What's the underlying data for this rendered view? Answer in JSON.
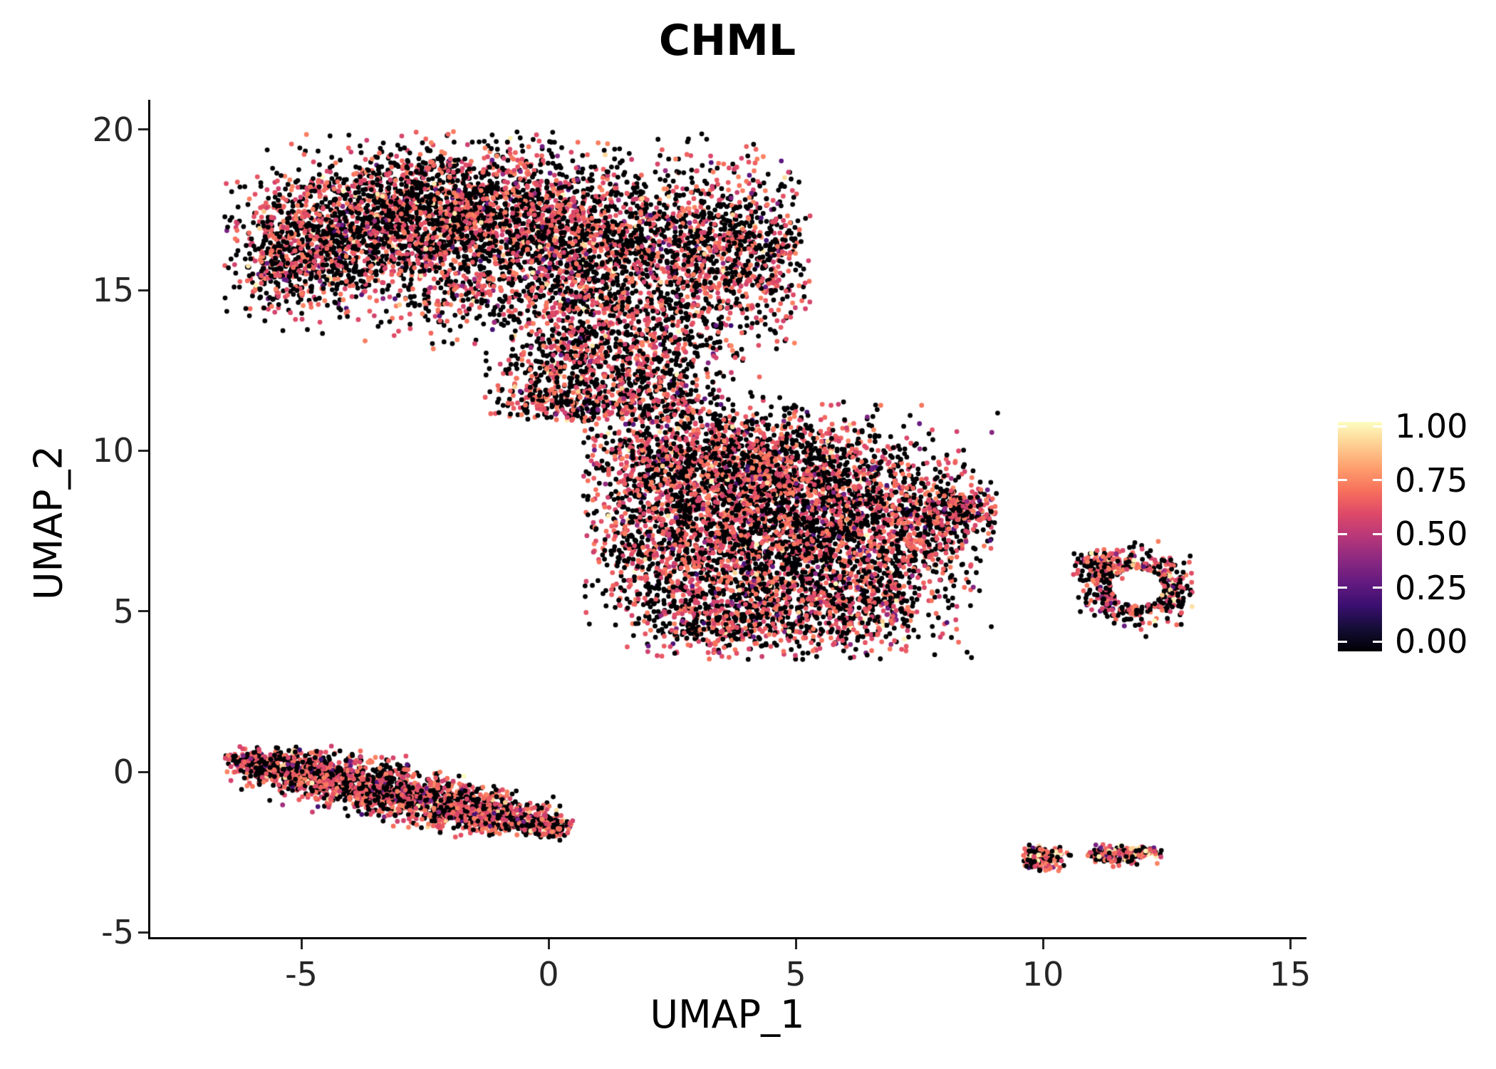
{
  "title": "CHML",
  "chart_data": {
    "type": "scatter",
    "title": "CHML",
    "xlabel": "UMAP_1",
    "ylabel": "UMAP_2",
    "xlim": [
      -8.1,
      15.3
    ],
    "ylim": [
      -5.6,
      20.9
    ],
    "x_ticks": [
      -5,
      0,
      5,
      10,
      15
    ],
    "y_ticks": [
      -5,
      0,
      5,
      10,
      15,
      20
    ],
    "grid": "off",
    "legend_position": "right",
    "colormap": "magma",
    "color_stops": [
      {
        "t": 0.0,
        "c": "#000004"
      },
      {
        "t": 0.1,
        "c": "#140e36"
      },
      {
        "t": 0.2,
        "c": "#3b0f70"
      },
      {
        "t": 0.3,
        "c": "#641a80"
      },
      {
        "t": 0.4,
        "c": "#8c2981"
      },
      {
        "t": 0.5,
        "c": "#b73779"
      },
      {
        "t": 0.6,
        "c": "#de4968"
      },
      {
        "t": 0.7,
        "c": "#f7705c"
      },
      {
        "t": 0.8,
        "c": "#fe9f6d"
      },
      {
        "t": 0.9,
        "c": "#fecf92"
      },
      {
        "t": 1.0,
        "c": "#fcfdbf"
      }
    ],
    "colorbar": {
      "labels": [
        "1.00",
        "0.75",
        "0.50",
        "0.25",
        "0.00"
      ],
      "values": [
        1.0,
        0.75,
        0.5,
        0.25,
        0.0
      ]
    },
    "point_radius_px": 3.4,
    "clusters": [
      {
        "name": "upper-cluster",
        "type": "blobs",
        "blobs": [
          [
            -5.3,
            15.6,
            0.55,
            0.7,
            220
          ],
          [
            -4.8,
            16.6,
            0.8,
            0.9,
            450
          ],
          [
            -3.6,
            17.0,
            1.15,
            1.15,
            850
          ],
          [
            -2.2,
            17.6,
            1.15,
            1.0,
            850
          ],
          [
            -0.8,
            17.2,
            1.1,
            1.15,
            780
          ],
          [
            0.6,
            16.6,
            1.0,
            1.2,
            680
          ],
          [
            2.0,
            16.2,
            1.0,
            1.3,
            600
          ],
          [
            3.3,
            16.4,
            0.9,
            1.35,
            580
          ],
          [
            4.2,
            15.9,
            0.6,
            1.2,
            300
          ],
          [
            -1.5,
            15.1,
            1.5,
            0.8,
            420
          ],
          [
            0.8,
            14.3,
            0.8,
            0.7,
            200
          ]
        ],
        "clip": [
          -6.6,
          5.3,
          12.6,
          19.95
        ],
        "expr": {
          "zero": 0.55,
          "low": 0.03,
          "mid": 0.4,
          "high": 0.02
        }
      },
      {
        "name": "isthmus-cluster",
        "type": "blobs",
        "blobs": [
          [
            0.2,
            12.4,
            0.7,
            0.8,
            240
          ],
          [
            1.2,
            12.7,
            0.8,
            0.9,
            300
          ],
          [
            2.2,
            12.0,
            0.8,
            0.8,
            220
          ],
          [
            0.0,
            11.5,
            0.6,
            0.3,
            120
          ],
          [
            1.5,
            11.35,
            0.8,
            0.35,
            130
          ],
          [
            2.8,
            13.5,
            0.75,
            0.8,
            130
          ]
        ],
        "clip": [
          -1.3,
          4.3,
          10.9,
          14.7
        ],
        "expr": {
          "zero": 0.55,
          "low": 0.03,
          "mid": 0.4,
          "high": 0.02
        }
      },
      {
        "name": "central-cluster",
        "type": "blobs",
        "blobs": [
          [
            2.6,
            9.8,
            1.0,
            0.9,
            600
          ],
          [
            4.2,
            9.6,
            1.3,
            1.0,
            800
          ],
          [
            6.0,
            8.8,
            1.2,
            1.1,
            700
          ],
          [
            3.2,
            8.0,
            1.2,
            1.1,
            700
          ],
          [
            5.0,
            7.2,
            1.4,
            1.2,
            800
          ],
          [
            6.8,
            6.8,
            1.0,
            1.0,
            500
          ],
          [
            4.2,
            5.6,
            1.2,
            0.9,
            600
          ],
          [
            5.8,
            4.9,
            1.0,
            0.7,
            400
          ],
          [
            2.2,
            6.6,
            0.7,
            1.0,
            300
          ],
          [
            7.8,
            7.9,
            0.7,
            0.6,
            250
          ],
          [
            8.5,
            8.15,
            0.35,
            0.3,
            130
          ],
          [
            3.2,
            4.6,
            0.8,
            0.5,
            220
          ]
        ],
        "clip": [
          0.7,
          9.1,
          3.5,
          11.7
        ],
        "expr": {
          "zero": 0.5,
          "low": 0.04,
          "mid": 0.44,
          "high": 0.02
        }
      },
      {
        "name": "right-island-ring",
        "type": "ring",
        "ring": [
          11.9,
          5.75,
          0.5,
          0.33,
          1.05,
          1.15,
          430
        ],
        "blobs": [
          [
            11.15,
            6.45,
            0.25,
            0.25,
            80
          ]
        ],
        "clip": [
          10.6,
          13.35,
          4.2,
          7.2
        ],
        "expr": {
          "zero": 0.5,
          "low": 0.05,
          "mid": 0.42,
          "high": 0.03
        }
      },
      {
        "name": "lower-left-stripe",
        "type": "blobs",
        "blobs": [
          [
            -6.0,
            0.3,
            0.32,
            0.26,
            170
          ],
          [
            -5.3,
            0.1,
            0.45,
            0.32,
            280
          ],
          [
            -4.6,
            -0.1,
            0.5,
            0.35,
            300
          ],
          [
            -3.9,
            -0.35,
            0.5,
            0.35,
            300
          ],
          [
            -3.2,
            -0.6,
            0.5,
            0.35,
            300
          ],
          [
            -2.5,
            -0.85,
            0.5,
            0.35,
            300
          ],
          [
            -1.8,
            -1.1,
            0.5,
            0.32,
            280
          ],
          [
            -1.1,
            -1.35,
            0.45,
            0.3,
            250
          ],
          [
            -0.4,
            -1.55,
            0.4,
            0.25,
            200
          ],
          [
            0.05,
            -1.7,
            0.25,
            0.15,
            90
          ]
        ],
        "clip": [
          -6.55,
          0.5,
          -2.15,
          0.85
        ],
        "expr": {
          "zero": 0.45,
          "low": 0.04,
          "mid": 0.48,
          "high": 0.03
        }
      },
      {
        "name": "lower-right-islands",
        "type": "blobs",
        "blobs": [
          [
            10.05,
            -2.72,
            0.22,
            0.2,
            150
          ],
          [
            11.3,
            -2.62,
            0.2,
            0.11,
            100
          ],
          [
            11.75,
            -2.55,
            0.28,
            0.11,
            120
          ],
          [
            12.1,
            -2.5,
            0.12,
            0.08,
            30
          ]
        ],
        "clip": [
          9.6,
          12.4,
          -3.2,
          -2.1
        ],
        "expr": {
          "zero": 0.35,
          "low": 0.05,
          "mid": 0.45,
          "high": 0.15
        }
      }
    ]
  }
}
